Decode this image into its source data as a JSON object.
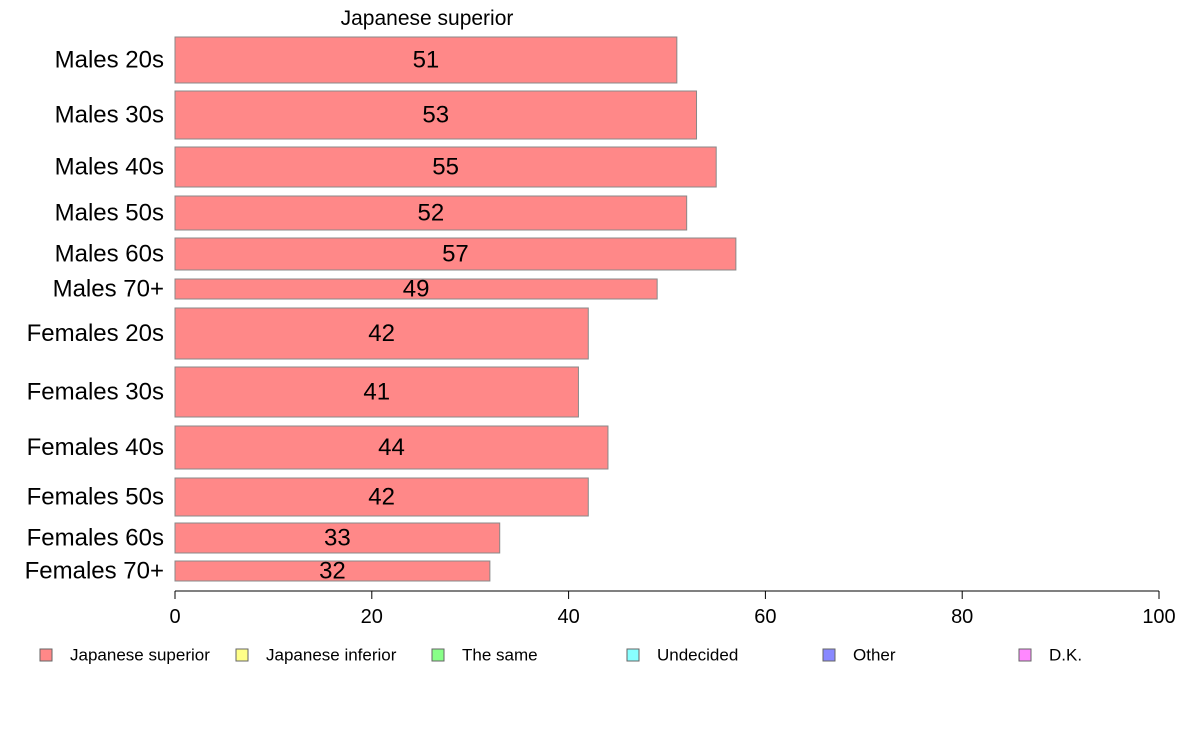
{
  "chart_data": {
    "type": "bar",
    "orientation": "horizontal",
    "title": "Japanese superior",
    "xlim": [
      0,
      100
    ],
    "x_ticks": [
      0,
      20,
      40,
      60,
      80,
      100
    ],
    "categories": [
      "Males 20s",
      "Males 30s",
      "Males 40s",
      "Males 50s",
      "Males 60s",
      "Males 70+",
      "Females 20s",
      "Females 30s",
      "Females 40s",
      "Females 50s",
      "Females 60s",
      "Females 70+"
    ],
    "series": [
      {
        "name": "Japanese superior",
        "color": "#ff8888",
        "values": [
          51,
          53,
          55,
          52,
          57,
          49,
          42,
          41,
          44,
          42,
          33,
          32
        ],
        "data_labels": [
          "51",
          "53",
          "55",
          "52",
          "57",
          "49",
          "42",
          "41",
          "44",
          "42",
          "33",
          "32"
        ]
      }
    ],
    "legend": {
      "position": "bottom",
      "items": [
        {
          "label": "Japanese superior",
          "color": "#ff8888"
        },
        {
          "label": "Japanese inferior",
          "color": "#ffff88"
        },
        {
          "label": "The same",
          "color": "#88ff88"
        },
        {
          "label": "Undecided",
          "color": "#88ffff"
        },
        {
          "label": "Other",
          "color": "#8888ff"
        },
        {
          "label": "D.K.",
          "color": "#ff88ff"
        }
      ]
    },
    "grid": false
  }
}
